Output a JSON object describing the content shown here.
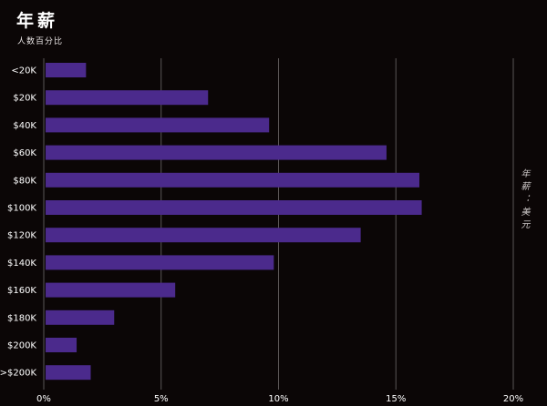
{
  "chart_data": {
    "type": "bar",
    "orientation": "horizontal",
    "title": "年薪",
    "subtitle": "人数百分比",
    "ylabel": "年薪：美元",
    "xlabel": "",
    "categories": [
      "<20K",
      "$20K",
      "$40K",
      "$60K",
      "$80K",
      "$100K",
      "$120K",
      "$140K",
      "$160K",
      "$180K",
      "$200K",
      ">$200K"
    ],
    "values": [
      1.8,
      7.0,
      9.6,
      14.6,
      16.0,
      16.1,
      13.5,
      9.8,
      5.6,
      3.0,
      1.4,
      2.0
    ],
    "xlim": [
      0,
      20
    ],
    "xticks": [
      0,
      5,
      10,
      15,
      20
    ],
    "xtick_labels": [
      "0%",
      "5%",
      "10%",
      "15%",
      "20%"
    ],
    "grid": "vertical",
    "colors": {
      "bar": "#4b2a8c",
      "background": "#0b0606",
      "grid": "#5a5555",
      "text": "#ffffff"
    }
  }
}
